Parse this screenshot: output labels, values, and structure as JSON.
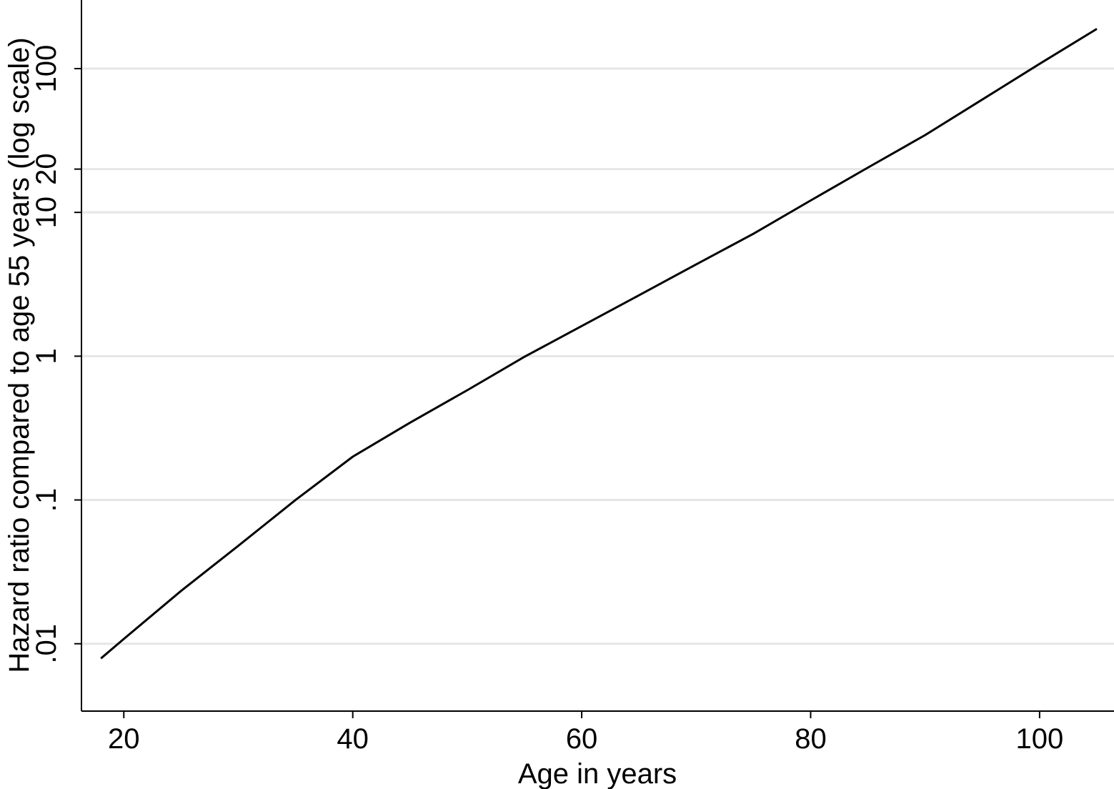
{
  "chart_data": {
    "type": "line",
    "title": "",
    "xlabel": "Age in years",
    "ylabel": "Hazard ratio compared to age 55 years (log scale)",
    "y_scale": "log",
    "grid": "horizontal gridlines at y ticks",
    "xlim": [
      16.3,
      106.5
    ],
    "ylim": [
      0.0034,
      300
    ],
    "x_ticks": [
      {
        "value": 20,
        "label": "20"
      },
      {
        "value": 40,
        "label": "40"
      },
      {
        "value": 60,
        "label": "60"
      },
      {
        "value": 80,
        "label": "80"
      },
      {
        "value": 100,
        "label": "100"
      }
    ],
    "y_ticks": [
      {
        "value": 0.01,
        "label": ".01"
      },
      {
        "value": 0.1,
        "label": ".1"
      },
      {
        "value": 1,
        "label": "1"
      },
      {
        "value": 10,
        "label": "10"
      },
      {
        "value": 20,
        "label": "20"
      },
      {
        "value": 100,
        "label": "100"
      }
    ],
    "series": [
      {
        "x": [
          18,
          20,
          25,
          30,
          35,
          40,
          45,
          50,
          55,
          60,
          65,
          70,
          75,
          80,
          85,
          90,
          95,
          100,
          105
        ],
        "y": [
          0.0079,
          0.0108,
          0.0233,
          0.048,
          0.1,
          0.2,
          0.345,
          0.58,
          0.99,
          1.62,
          2.65,
          4.35,
          7.1,
          12.1,
          20.5,
          34.5,
          61,
          108,
          189
        ]
      }
    ],
    "colors": {
      "line": "#000000",
      "grid": "#e6e6e6",
      "axis": "#000000"
    }
  }
}
